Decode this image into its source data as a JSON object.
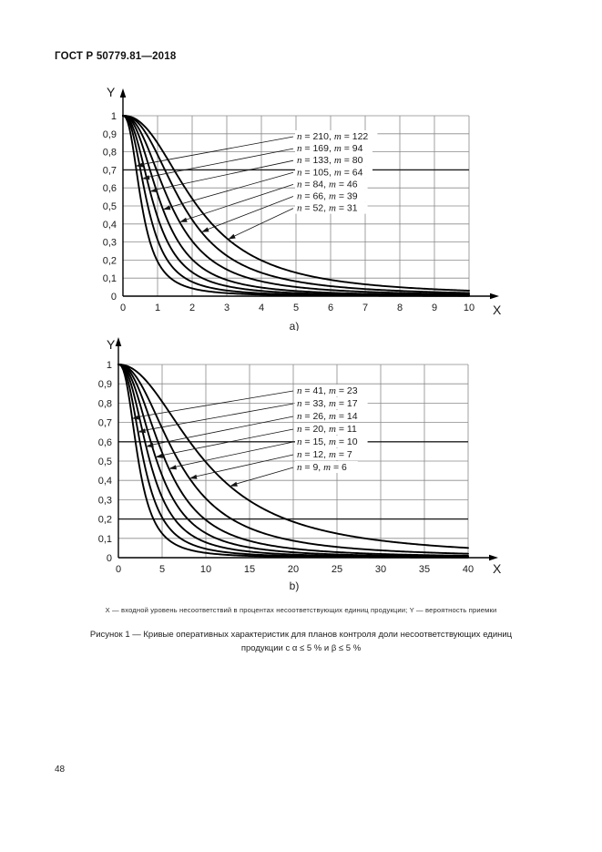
{
  "page": {
    "header": "ГОСТ Р 50779.81—2018",
    "page_number": "48",
    "axis_note": "X — входной уровень несоответствий в процентах несоответствующих единиц продукции; Y — вероятность приемки",
    "figure_caption_line1": "Рисунок 1 — Кривые оперативных характеристик для планов контроля доли несоответствующих единиц",
    "figure_caption_line2": "продукции с α ≤ 5 % и β ≤ 5 %"
  },
  "chart_data": [
    {
      "type": "line",
      "id": "a",
      "sublabel": "a)",
      "xlabel": "X",
      "ylabel": "Y",
      "xlim": [
        0,
        10
      ],
      "ylim": [
        0,
        1
      ],
      "xticks": [
        0,
        1,
        2,
        3,
        4,
        5,
        6,
        7,
        8,
        9,
        10
      ],
      "yticks": [
        [
          0,
          "0"
        ],
        [
          0.1,
          "0,1"
        ],
        [
          0.2,
          "0,2"
        ],
        [
          0.3,
          "0,3"
        ],
        [
          0.4,
          "0,4"
        ],
        [
          0.5,
          "0,5"
        ],
        [
          0.6,
          "0,6"
        ],
        [
          0.7,
          "0,7"
        ],
        [
          0.8,
          "0,8"
        ],
        [
          0.9,
          "0,9"
        ],
        [
          1,
          "1"
        ]
      ],
      "grid": true,
      "bold_gridlines_y": [
        0.7
      ],
      "legend_position": "inside-top-right",
      "var_names": [
        "n",
        "m"
      ],
      "curve_model": "y = 1 / (1 + (x/x50)^shape)  (OC curve: acceptance probability vs nonconforming %)",
      "series": [
        {
          "label": "n = 210, m = 122",
          "n": 210,
          "m": 122,
          "x50": 0.55,
          "shape": 2.4
        },
        {
          "label": "n = 169, m = 94",
          "n": 169,
          "m": 94,
          "x50": 0.72,
          "shape": 2.4
        },
        {
          "label": "n = 133, m = 80",
          "n": 133,
          "m": 80,
          "x50": 0.9,
          "shape": 2.35
        },
        {
          "label": "n = 105, m = 64",
          "n": 105,
          "m": 64,
          "x50": 1.12,
          "shape": 2.35
        },
        {
          "label": "n = 84, m = 46",
          "n": 84,
          "m": 46,
          "x50": 1.4,
          "shape": 2.3
        },
        {
          "label": "n = 66, m = 39",
          "n": 66,
          "m": 39,
          "x50": 1.75,
          "shape": 2.3
        },
        {
          "label": "n = 52, m = 31",
          "n": 52,
          "m": 31,
          "x50": 2.15,
          "shape": 2.25
        }
      ],
      "pointer_y": [
        0.72,
        0.65,
        0.58,
        0.48,
        0.41,
        0.355,
        0.315
      ]
    },
    {
      "type": "line",
      "id": "b",
      "sublabel": "b)",
      "xlabel": "X",
      "ylabel": "Y",
      "xlim": [
        0,
        40
      ],
      "ylim": [
        0,
        1
      ],
      "xticks": [
        0,
        5,
        10,
        15,
        20,
        25,
        30,
        35,
        40
      ],
      "yticks": [
        [
          0,
          "0"
        ],
        [
          0.1,
          "0,1"
        ],
        [
          0.2,
          "0,2"
        ],
        [
          0.3,
          "0,3"
        ],
        [
          0.4,
          "0,4"
        ],
        [
          0.5,
          "0,5"
        ],
        [
          0.6,
          "0,6"
        ],
        [
          0.7,
          "0,7"
        ],
        [
          0.8,
          "0,8"
        ],
        [
          0.9,
          "0,9"
        ],
        [
          1,
          "1"
        ]
      ],
      "grid": true,
      "bold_gridlines_y": [
        0.6,
        0.2
      ],
      "legend_position": "inside-top-right",
      "var_names": [
        "n",
        "m"
      ],
      "curve_model": "y = 1 / (1 + (x/x50)^shape)  (OC curve: acceptance probability vs nonconforming %)",
      "series": [
        {
          "label": "n = 41, m = 23",
          "n": 41,
          "m": 23,
          "x50": 2.3,
          "shape": 2.5
        },
        {
          "label": "n = 33, m = 17",
          "n": 33,
          "m": 17,
          "x50": 2.9,
          "shape": 2.45
        },
        {
          "label": "n = 26, m = 14",
          "n": 26,
          "m": 14,
          "x50": 3.6,
          "shape": 2.4
        },
        {
          "label": "n = 20, m = 11",
          "n": 20,
          "m": 11,
          "x50": 4.4,
          "shape": 2.35
        },
        {
          "label": "n = 15, m = 10",
          "n": 15,
          "m": 10,
          "x50": 5.4,
          "shape": 2.3
        },
        {
          "label": "n = 12, m = 7",
          "n": 12,
          "m": 7,
          "x50": 6.9,
          "shape": 2.2
        },
        {
          "label": "n = 9, m = 6",
          "n": 9,
          "m": 6,
          "x50": 9.9,
          "shape": 2.1
        }
      ],
      "pointer_y": [
        0.72,
        0.65,
        0.575,
        0.52,
        0.46,
        0.41,
        0.37
      ]
    }
  ],
  "colors": {
    "curve": "#000000",
    "grid": "#8a8a8a",
    "bold_grid": "#1f1f1f",
    "axis": "#000000",
    "text": "#1a1a1a",
    "background": "#ffffff"
  }
}
